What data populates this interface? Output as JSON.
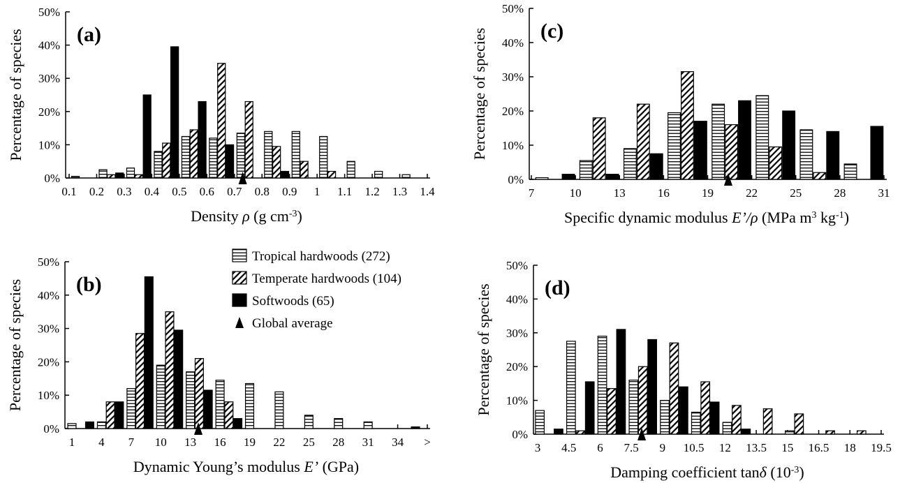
{
  "chart_data": [
    {
      "type": "bar",
      "panel_label": "(a)",
      "ylabel": "Percentage of species",
      "xlabel": [
        "Density ",
        "ρ",
        " (g cm",
        "-3",
        ")"
      ],
      "xlabel_styles": [
        "normal",
        "italic",
        "normal",
        "sup",
        "normal"
      ],
      "x": [
        0.1,
        0.2,
        0.3,
        0.4,
        0.5,
        0.6,
        0.7,
        0.8,
        0.9,
        1,
        1.1,
        1.2,
        1.3
      ],
      "xlim": [
        0.1,
        1.4
      ],
      "xticks": [
        0.1,
        0.2,
        0.3,
        0.4,
        0.5,
        0.6,
        0.7,
        0.8,
        0.9,
        1,
        1.1,
        1.2,
        1.3,
        1.4
      ],
      "ylim": [
        0,
        50
      ],
      "yticks": [
        {
          "value": 0,
          "label": "0%"
        },
        {
          "value": 10,
          "label": "10%"
        },
        {
          "value": 20,
          "label": "20%"
        },
        {
          "value": 30,
          "label": "30%"
        },
        {
          "value": 40,
          "label": "40%"
        },
        {
          "value": 50,
          "label": "50%"
        }
      ],
      "average": 0.73,
      "series": [
        {
          "color": "#000000",
          "pattern": "horizontal",
          "values": [
            0.5,
            2.5,
            3,
            8,
            12.5,
            12,
            13.5,
            14,
            14,
            12.5,
            5,
            2,
            1
          ]
        },
        {
          "color": "#000000",
          "pattern": "diagonal",
          "values": [
            0,
            1,
            1,
            10.5,
            14.5,
            34.5,
            23,
            9.5,
            5,
            2,
            0,
            0,
            0
          ]
        },
        {
          "color": "#000000",
          "pattern": "solid",
          "values": [
            0,
            1.5,
            25,
            39.5,
            23,
            10,
            0,
            2,
            0,
            0,
            0,
            0,
            0
          ]
        }
      ]
    },
    {
      "type": "bar",
      "panel_label": "(b)",
      "ylabel": "Percentage of species",
      "xlabel": [
        "Dynamic Young’s modulus ",
        "E’",
        " (GPa)"
      ],
      "xlabel_styles": [
        "normal",
        "italic",
        "normal"
      ],
      "x": [
        1,
        4,
        7,
        10,
        13,
        16,
        19,
        22,
        25,
        28,
        31,
        34
      ],
      "xlim": [
        1,
        37
      ],
      "xticks": [
        1,
        4,
        7,
        10,
        13,
        16,
        19,
        22,
        25,
        28,
        31,
        34,
        {
          "value": 37,
          "label": ">"
        }
      ],
      "ylim": [
        0,
        50
      ],
      "yticks": [
        {
          "value": 0,
          "label": "0%"
        },
        {
          "value": 10,
          "label": "10%"
        },
        {
          "value": 20,
          "label": "20%"
        },
        {
          "value": 30,
          "label": "30%"
        },
        {
          "value": 40,
          "label": "40%"
        },
        {
          "value": 50,
          "label": "50%"
        }
      ],
      "average": 13.8,
      "legend": "upper right",
      "average_label": "Global average",
      "series": [
        {
          "name": "Tropical hardwoods (272)",
          "color": "#000000",
          "pattern": "horizontal",
          "values": [
            1.5,
            2,
            12,
            19,
            17,
            14.5,
            13.5,
            11,
            4,
            3,
            2,
            0
          ]
        },
        {
          "name": "Temperate hardwoods (104)",
          "color": "#000000",
          "pattern": "diagonal",
          "values": [
            0,
            8,
            28.5,
            35,
            21,
            8,
            0,
            0,
            0,
            0,
            0,
            0
          ]
        },
        {
          "name": "Softwoods (65)",
          "color": "#000000",
          "pattern": "solid",
          "values": [
            2,
            8,
            45.5,
            29.5,
            11.5,
            3,
            0,
            0,
            0,
            0,
            0,
            0.5
          ]
        }
      ]
    },
    {
      "type": "bar",
      "panel_label": "(c)",
      "ylabel": "Percentage of species",
      "xlabel": [
        "Specific dynamic modulus ",
        "E’/ρ",
        " (MPa m",
        "3",
        " kg",
        "-1",
        ")"
      ],
      "xlabel_styles": [
        "normal",
        "italic",
        "normal",
        "sup",
        "normal",
        "sup",
        "normal"
      ],
      "x": [
        7,
        10,
        13,
        16,
        19,
        22,
        25,
        28
      ],
      "xlim": [
        7,
        31
      ],
      "xticks": [
        7,
        10,
        13,
        16,
        19,
        22,
        25,
        28,
        31
      ],
      "ylim": [
        0,
        50
      ],
      "yticks": [
        {
          "value": 0,
          "label": "0%"
        },
        {
          "value": 10,
          "label": "10%"
        },
        {
          "value": 20,
          "label": "20%"
        },
        {
          "value": 30,
          "label": "30%"
        },
        {
          "value": 40,
          "label": "40%"
        },
        {
          "value": 50,
          "label": "50%"
        }
      ],
      "average": 20.4,
      "series": [
        {
          "color": "#000000",
          "pattern": "horizontal",
          "values": [
            0.5,
            5.5,
            9,
            19.5,
            22,
            24.5,
            14.5,
            4.5
          ]
        },
        {
          "color": "#000000",
          "pattern": "diagonal",
          "values": [
            0,
            18,
            22,
            31.5,
            16,
            9.5,
            2,
            0
          ]
        },
        {
          "color": "#000000",
          "pattern": "solid",
          "values": [
            1.5,
            1.5,
            7.5,
            17,
            23,
            20,
            14,
            15.5
          ]
        }
      ]
    },
    {
      "type": "bar",
      "panel_label": "(d)",
      "ylabel": "Percentage of species",
      "xlabel": [
        "Damping coefficient tan",
        "δ",
        " (10",
        "-3",
        ")"
      ],
      "xlabel_styles": [
        "normal",
        "italic",
        "normal",
        "sup",
        "normal"
      ],
      "x": [
        3,
        4.5,
        6,
        7.5,
        9,
        10.5,
        12,
        13.5,
        15,
        16.5,
        18
      ],
      "xlim": [
        3,
        19.5
      ],
      "xticks": [
        3,
        4.5,
        6,
        7.5,
        9,
        10.5,
        12,
        13.5,
        15,
        16.5,
        18,
        19.5
      ],
      "ylim": [
        0,
        50
      ],
      "yticks": [
        {
          "value": 0,
          "label": "0%"
        },
        {
          "value": 10,
          "label": "10%"
        },
        {
          "value": 20,
          "label": "20%"
        },
        {
          "value": 30,
          "label": "30%"
        },
        {
          "value": 40,
          "label": "40%"
        },
        {
          "value": 50,
          "label": "50%"
        }
      ],
      "average": 8,
      "series": [
        {
          "color": "#000000",
          "pattern": "horizontal",
          "values": [
            7,
            27.5,
            29,
            16,
            10,
            6.5,
            3.5,
            0,
            1,
            0,
            0
          ]
        },
        {
          "color": "#000000",
          "pattern": "diagonal",
          "values": [
            0,
            1,
            13.5,
            20,
            27,
            15.5,
            8.5,
            7.5,
            6,
            1,
            1
          ]
        },
        {
          "color": "#000000",
          "pattern": "solid",
          "values": [
            1.5,
            15.5,
            31,
            28,
            14,
            9.5,
            1.5,
            0,
            0,
            0,
            0
          ]
        }
      ]
    }
  ]
}
